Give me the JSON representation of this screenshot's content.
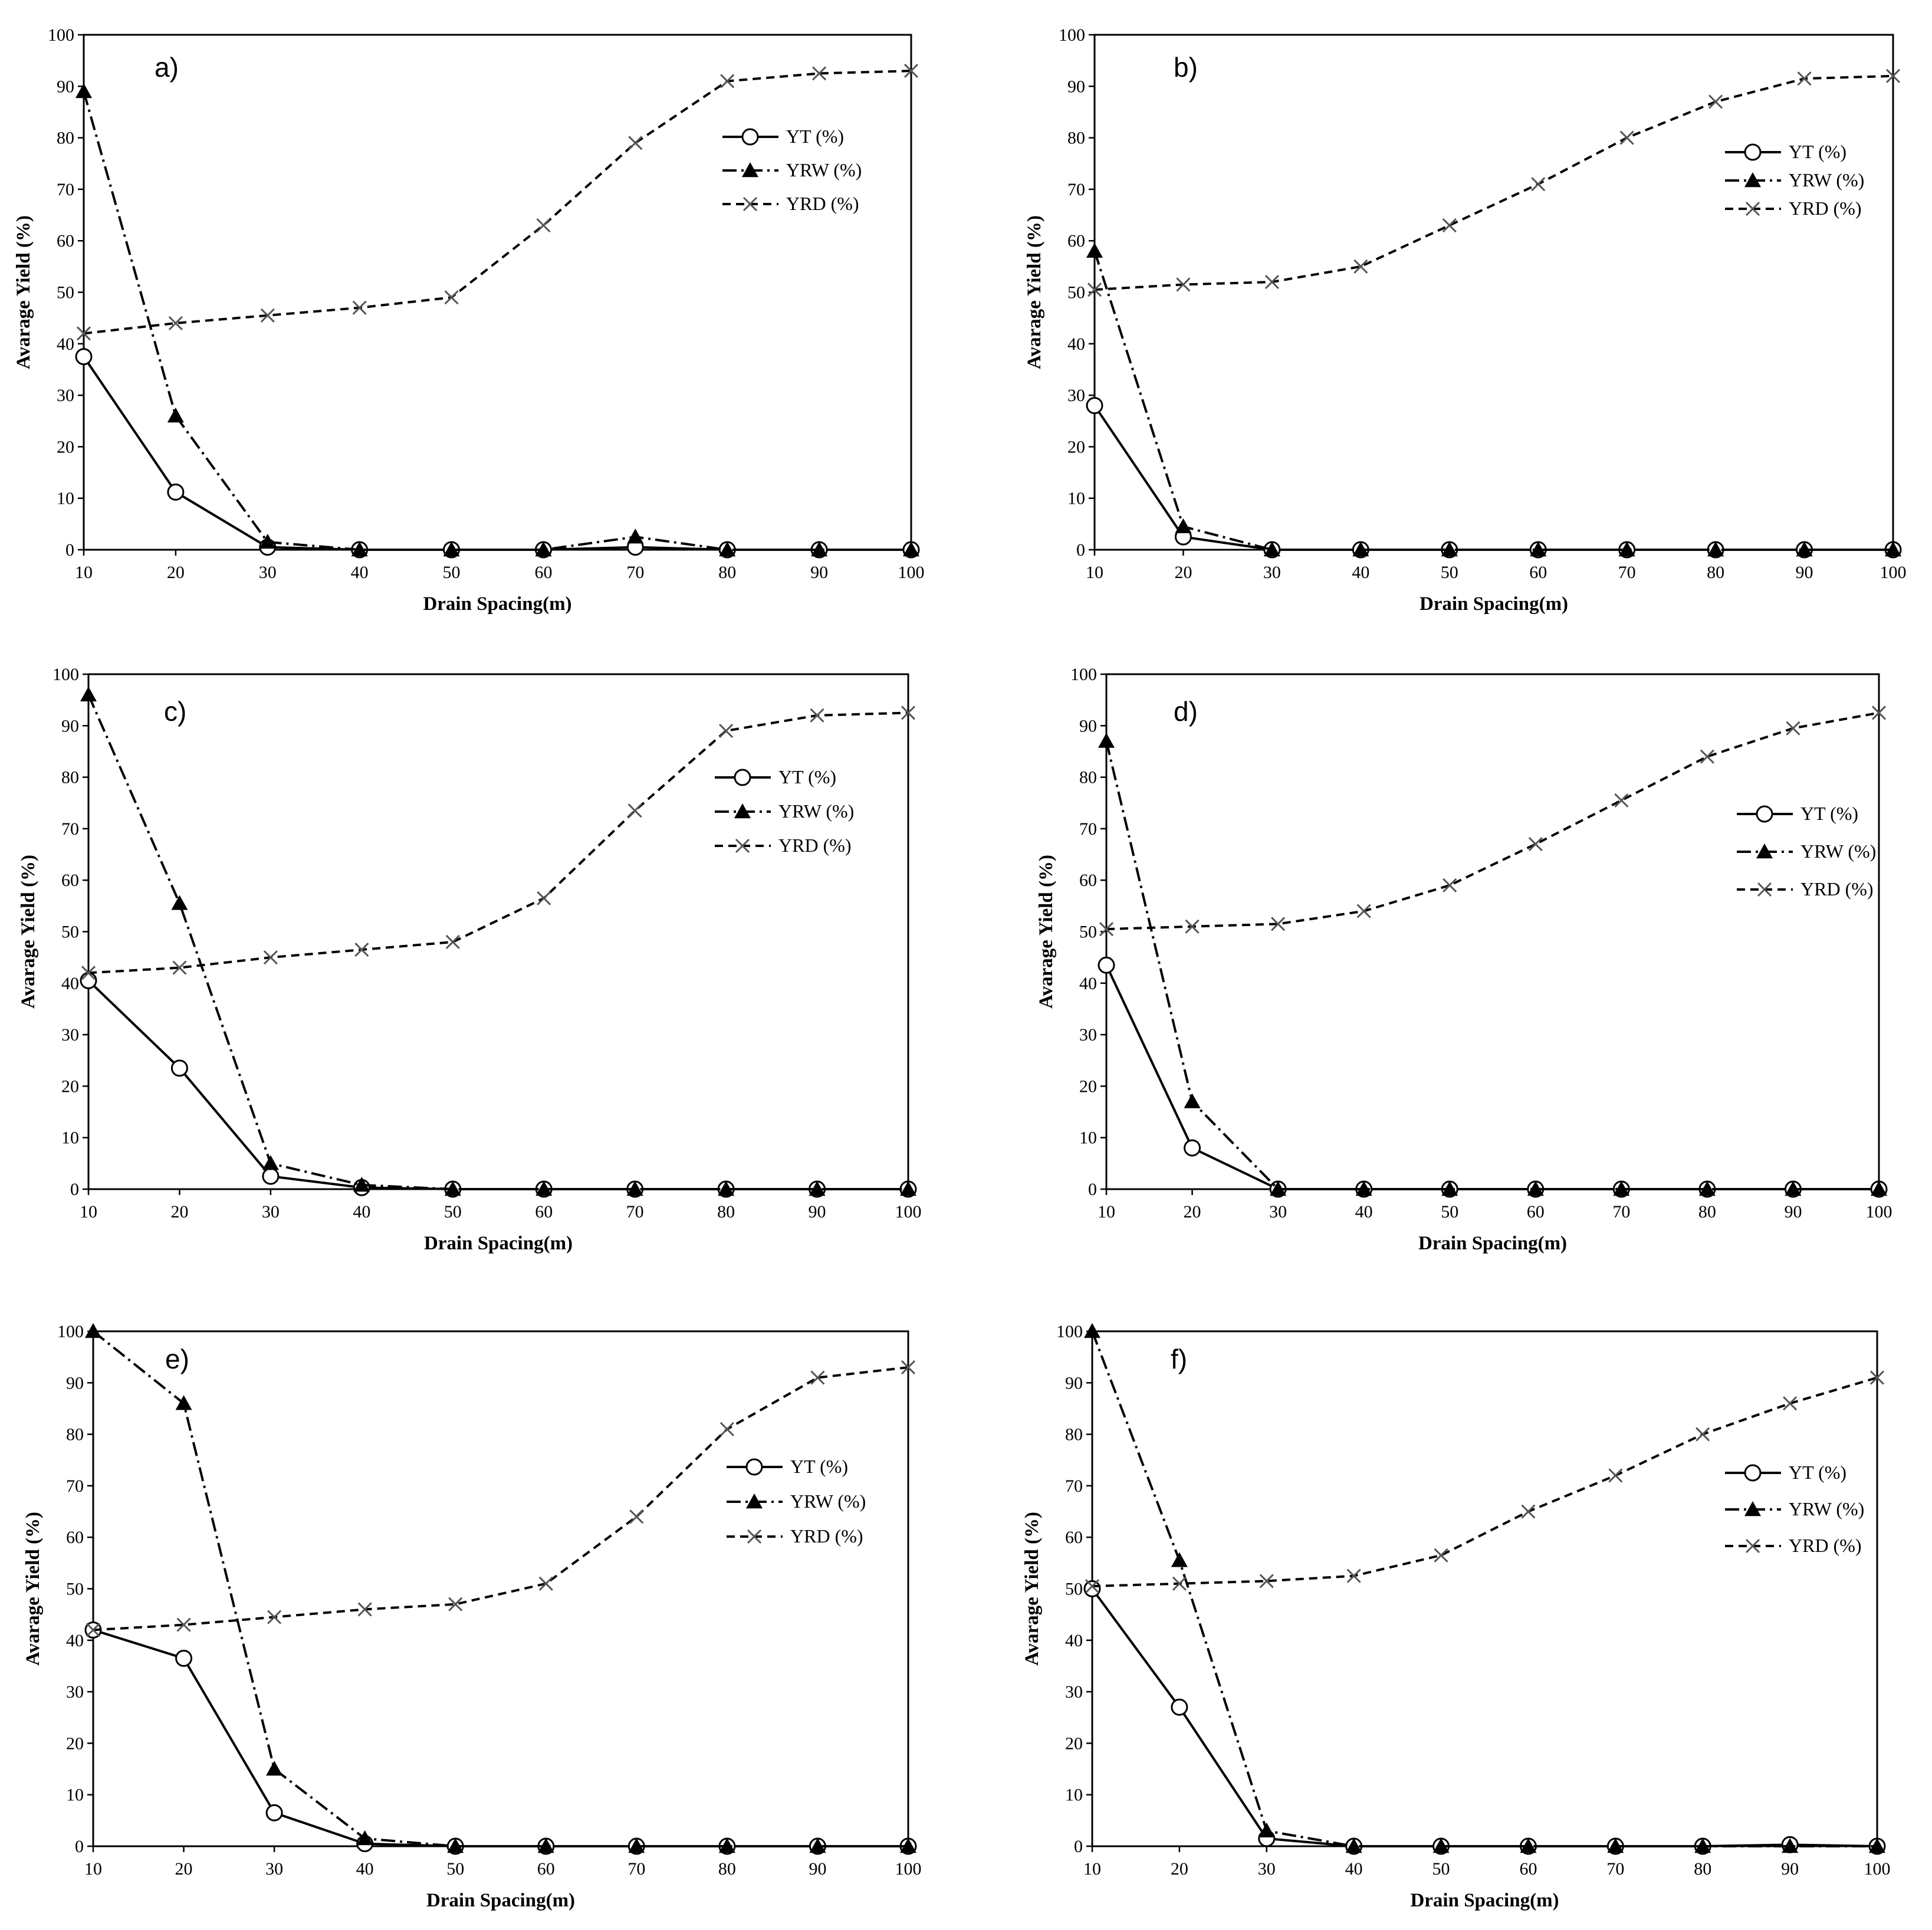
{
  "figure": {
    "background": "#ffffff",
    "line_color": "#000000",
    "yrd_color": "#555555"
  },
  "legend": [
    "YT (%)",
    "YRW (%)",
    "YRD (%)"
  ],
  "chart_data": [
    {
      "type": "line",
      "panel_label": "a)",
      "xlabel": "Drain Spacing(m)",
      "ylabel": "Avarage Yield (%)",
      "x": [
        10,
        20,
        30,
        40,
        50,
        60,
        70,
        80,
        90,
        100
      ],
      "xlim": [
        10,
        100
      ],
      "ylim": [
        0,
        100
      ],
      "yticks": [
        0,
        10,
        20,
        30,
        40,
        50,
        60,
        70,
        80,
        90,
        100
      ],
      "legend_position": "right",
      "series": [
        {
          "name": "YT (%)",
          "values": [
            37.5,
            11.2,
            0.5,
            0,
            0,
            0,
            0.5,
            0,
            0,
            0
          ],
          "line": "solid",
          "marker": "open-circle"
        },
        {
          "name": "YRW (%)",
          "values": [
            89,
            26,
            1.5,
            0,
            0,
            0,
            2.5,
            0,
            0,
            0
          ],
          "line": "dash-dot",
          "marker": "filled-triangle"
        },
        {
          "name": "YRD (%)",
          "values": [
            42,
            44,
            45.5,
            47,
            49,
            63,
            79,
            91,
            92.5,
            93
          ],
          "line": "dashed",
          "marker": "x"
        }
      ]
    },
    {
      "type": "line",
      "panel_label": "b)",
      "xlabel": "Drain Spacing(m)",
      "ylabel": "Avarage Yield (%)",
      "x": [
        10,
        20,
        30,
        40,
        50,
        60,
        70,
        80,
        90,
        100
      ],
      "xlim": [
        10,
        100
      ],
      "ylim": [
        0,
        100
      ],
      "yticks": [
        0,
        10,
        20,
        30,
        40,
        50,
        60,
        70,
        80,
        90,
        100
      ],
      "legend_position": "right",
      "series": [
        {
          "name": "YT (%)",
          "values": [
            28,
            2.5,
            0,
            0,
            0,
            0,
            0,
            0,
            0,
            0
          ],
          "line": "solid",
          "marker": "open-circle"
        },
        {
          "name": "YRW (%)",
          "values": [
            58,
            4.5,
            0,
            0,
            0,
            0,
            0,
            0,
            0,
            0
          ],
          "line": "dash-dot",
          "marker": "filled-triangle"
        },
        {
          "name": "YRD (%)",
          "values": [
            50.5,
            51.5,
            52,
            55,
            63,
            71,
            80,
            87,
            91.5,
            92
          ],
          "line": "dashed",
          "marker": "x"
        }
      ]
    },
    {
      "type": "line",
      "panel_label": "c)",
      "xlabel": "Drain Spacing(m)",
      "ylabel": "Avarage Yield (%)",
      "x": [
        10,
        20,
        30,
        40,
        50,
        60,
        70,
        80,
        90,
        100
      ],
      "xlim": [
        10,
        100
      ],
      "ylim": [
        0,
        100
      ],
      "yticks": [
        0,
        10,
        20,
        30,
        40,
        50,
        60,
        70,
        80,
        90,
        100
      ],
      "legend_position": "right",
      "series": [
        {
          "name": "YT (%)",
          "values": [
            40.5,
            23.5,
            2.5,
            0.3,
            0,
            0,
            0,
            0,
            0,
            0
          ],
          "line": "solid",
          "marker": "open-circle"
        },
        {
          "name": "YRW (%)",
          "values": [
            96,
            55.5,
            5,
            0.8,
            0,
            0,
            0,
            0,
            0,
            0
          ],
          "line": "dash-dot",
          "marker": "filled-triangle"
        },
        {
          "name": "YRD (%)",
          "values": [
            42,
            43,
            45,
            46.5,
            48,
            56.5,
            73.5,
            89,
            92,
            92.5
          ],
          "line": "dashed",
          "marker": "x"
        }
      ]
    },
    {
      "type": "line",
      "panel_label": "d)",
      "xlabel": "Drain Spacing(m)",
      "ylabel": "Avarage Yield (%)",
      "x": [
        10,
        20,
        30,
        40,
        50,
        60,
        70,
        80,
        90,
        100
      ],
      "xlim": [
        10,
        100
      ],
      "ylim": [
        0,
        100
      ],
      "yticks": [
        0,
        10,
        20,
        30,
        40,
        50,
        60,
        70,
        80,
        90,
        100
      ],
      "legend_position": "right",
      "series": [
        {
          "name": "YT (%)",
          "values": [
            43.5,
            8,
            0,
            0,
            0,
            0,
            0,
            0,
            0,
            0
          ],
          "line": "solid",
          "marker": "open-circle"
        },
        {
          "name": "YRW (%)",
          "values": [
            87,
            17,
            0,
            0,
            0,
            0,
            0,
            0,
            0,
            0
          ],
          "line": "dash-dot",
          "marker": "filled-triangle"
        },
        {
          "name": "YRD (%)",
          "values": [
            50.5,
            51,
            51.5,
            54,
            59,
            67,
            75.5,
            84,
            89.5,
            92.5
          ],
          "line": "dashed",
          "marker": "x"
        }
      ]
    },
    {
      "type": "line",
      "panel_label": "e)",
      "xlabel": "Drain Spacing(m)",
      "ylabel": "Avarage Yield (%)",
      "x": [
        10,
        20,
        30,
        40,
        50,
        60,
        70,
        80,
        90,
        100
      ],
      "xlim": [
        10,
        100
      ],
      "ylim": [
        0,
        100
      ],
      "yticks": [
        0,
        10,
        20,
        30,
        40,
        50,
        60,
        70,
        80,
        90,
        100
      ],
      "legend_position": "right",
      "series": [
        {
          "name": "YT (%)",
          "values": [
            42,
            36.5,
            6.5,
            0.5,
            0,
            0,
            0,
            0,
            0,
            0
          ],
          "line": "solid",
          "marker": "open-circle"
        },
        {
          "name": "YRW (%)",
          "values": [
            100,
            86,
            15,
            1.5,
            0,
            0,
            0,
            0,
            0,
            0
          ],
          "line": "dash-dot",
          "marker": "filled-triangle"
        },
        {
          "name": "YRD (%)",
          "values": [
            42,
            43,
            44.5,
            46,
            47,
            51,
            64,
            81,
            91,
            93
          ],
          "line": "dashed",
          "marker": "x"
        }
      ]
    },
    {
      "type": "line",
      "panel_label": "f)",
      "xlabel": "Drain Spacing(m)",
      "ylabel": "Avarage Yield (%)",
      "x": [
        10,
        20,
        30,
        40,
        50,
        60,
        70,
        80,
        90,
        100
      ],
      "xlim": [
        10,
        100
      ],
      "ylim": [
        0,
        100
      ],
      "yticks": [
        0,
        10,
        20,
        30,
        40,
        50,
        60,
        70,
        80,
        90,
        100
      ],
      "legend_position": "right",
      "series": [
        {
          "name": "YT (%)",
          "values": [
            50,
            27,
            1.5,
            0,
            0,
            0,
            0,
            0,
            0.3,
            0
          ],
          "line": "solid",
          "marker": "open-circle"
        },
        {
          "name": "YRW (%)",
          "values": [
            100,
            55.5,
            3,
            0,
            0,
            0,
            0,
            0,
            0,
            0
          ],
          "line": "dash-dot",
          "marker": "filled-triangle"
        },
        {
          "name": "YRD (%)",
          "values": [
            50.5,
            51,
            51.5,
            52.5,
            56.5,
            65,
            72,
            80,
            86,
            91
          ],
          "line": "dashed",
          "marker": "x"
        }
      ]
    }
  ]
}
